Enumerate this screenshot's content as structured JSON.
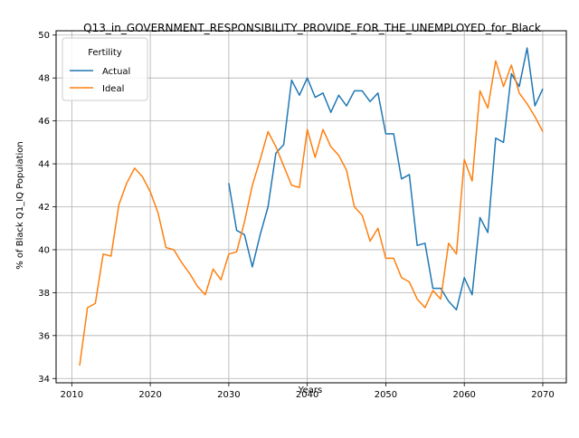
{
  "chart_data": {
    "type": "line",
    "title": "Q13_in_GOVERNMENT_RESPONSIBILITY_PROVIDE_FOR_THE_UNEMPLOYED_for_Black",
    "xlabel": "Years",
    "ylabel": "% of Black Q1_IQ Population",
    "xlim": [
      2008,
      2073
    ],
    "ylim": [
      33.8,
      50.2
    ],
    "xticks": [
      2010,
      2020,
      2030,
      2040,
      2050,
      2060,
      2070
    ],
    "yticks": [
      34,
      36,
      38,
      40,
      42,
      44,
      46,
      48,
      50
    ],
    "grid": true,
    "legend": {
      "title": "Fertility",
      "placement": "upper-left"
    },
    "series": [
      {
        "name": "Actual",
        "color": "#1f77b4",
        "x": [
          2030,
          2031,
          2032,
          2033,
          2034,
          2035,
          2036,
          2037,
          2038,
          2039,
          2040,
          2041,
          2042,
          2043,
          2044,
          2045,
          2046,
          2047,
          2048,
          2049,
          2050,
          2051,
          2052,
          2053,
          2054,
          2055,
          2056,
          2057,
          2058,
          2059,
          2060,
          2061,
          2062,
          2063,
          2064,
          2065,
          2066,
          2067,
          2068,
          2069,
          2070
        ],
        "y": [
          43.1,
          40.9,
          40.7,
          39.2,
          40.7,
          42.0,
          44.5,
          44.9,
          47.9,
          47.2,
          48.0,
          47.1,
          47.3,
          46.4,
          47.2,
          46.7,
          47.4,
          47.4,
          46.9,
          47.3,
          45.4,
          45.4,
          43.3,
          43.5,
          40.2,
          40.3,
          38.2,
          38.2,
          37.6,
          37.2,
          38.7,
          37.9,
          41.5,
          40.8,
          45.2,
          45.0,
          48.2,
          47.6,
          49.4,
          46.7,
          47.5
        ]
      },
      {
        "name": "Ideal",
        "color": "#ff7f0e",
        "x": [
          2011,
          2012,
          2013,
          2014,
          2015,
          2016,
          2017,
          2018,
          2019,
          2020,
          2021,
          2022,
          2023,
          2024,
          2025,
          2026,
          2027,
          2028,
          2029,
          2030,
          2031,
          2032,
          2033,
          2034,
          2035,
          2036,
          2037,
          2038,
          2039,
          2040,
          2041,
          2042,
          2043,
          2044,
          2045,
          2046,
          2047,
          2048,
          2049,
          2050,
          2051,
          2052,
          2053,
          2054,
          2055,
          2056,
          2057,
          2058,
          2059,
          2060,
          2061,
          2062,
          2063,
          2064,
          2065,
          2066,
          2067,
          2068,
          2069,
          2070
        ],
        "y": [
          34.6,
          37.3,
          37.5,
          39.8,
          39.7,
          42.1,
          43.1,
          43.8,
          43.4,
          42.7,
          41.7,
          40.1,
          40.0,
          39.4,
          38.9,
          38.3,
          37.9,
          39.1,
          38.6,
          39.8,
          39.9,
          41.3,
          43.0,
          44.2,
          45.5,
          44.8,
          43.9,
          43.0,
          42.9,
          45.6,
          44.3,
          45.6,
          44.8,
          44.4,
          43.7,
          42.0,
          41.6,
          40.4,
          41.0,
          39.6,
          39.6,
          38.7,
          38.5,
          37.7,
          37.3,
          38.1,
          37.7,
          40.3,
          39.8,
          44.2,
          43.2,
          47.4,
          46.6,
          48.8,
          47.6,
          48.6,
          47.3,
          46.8,
          46.2,
          45.5
        ]
      }
    ]
  }
}
